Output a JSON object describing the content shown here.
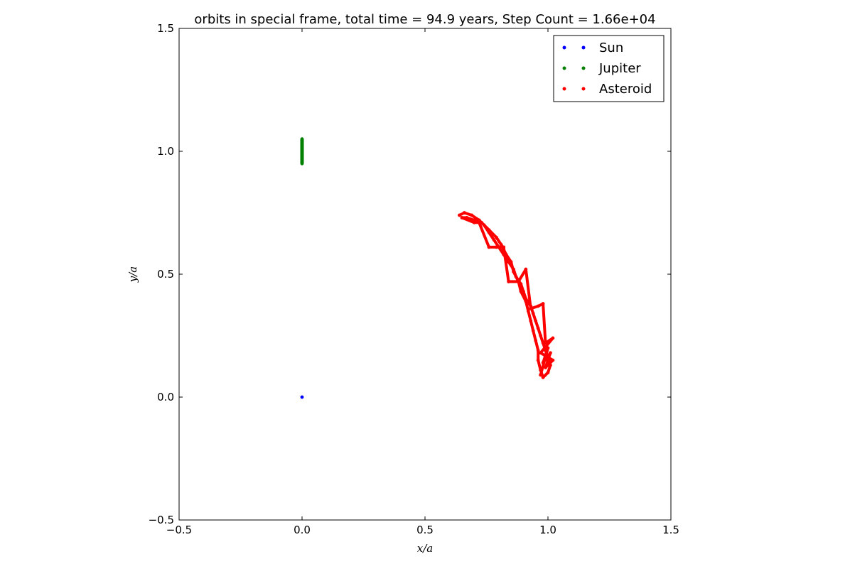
{
  "chart_data": {
    "type": "scatter",
    "title": "orbits in special frame, total time = 94.9 years, Step Count = 1.66e+04",
    "xlabel": "x/a",
    "ylabel": "y/a",
    "xlim": [
      -0.5,
      1.5
    ],
    "ylim": [
      -0.5,
      1.5
    ],
    "xticks": [
      -0.5,
      0.0,
      0.5,
      1.0,
      1.5
    ],
    "yticks": [
      -0.5,
      0.0,
      0.5,
      1.0,
      1.5
    ],
    "xtick_labels": [
      "−0.5",
      "0.0",
      "0.5",
      "1.0",
      "1.5"
    ],
    "ytick_labels": [
      "−0.5",
      "0.0",
      "0.5",
      "1.0",
      "1.5"
    ],
    "grid": false,
    "legend_position": "top-right",
    "series": [
      {
        "name": "Sun",
        "color": "#0000ff",
        "points": [
          [
            0.0,
            0.0
          ]
        ]
      },
      {
        "name": "Jupiter",
        "color": "#008000",
        "points": [
          [
            0.0,
            0.95
          ],
          [
            0.0,
            0.97
          ],
          [
            0.0,
            0.99
          ],
          [
            0.0,
            1.01
          ],
          [
            0.0,
            1.03
          ],
          [
            0.0,
            1.05
          ]
        ]
      },
      {
        "name": "Asteroid",
        "color": "#ff0000",
        "points": [
          [
            0.64,
            0.74
          ],
          [
            0.66,
            0.75
          ],
          [
            0.69,
            0.74
          ],
          [
            0.72,
            0.72
          ],
          [
            0.74,
            0.7
          ],
          [
            0.76,
            0.67
          ],
          [
            0.78,
            0.64
          ],
          [
            0.8,
            0.61
          ],
          [
            0.82,
            0.58
          ],
          [
            0.84,
            0.55
          ],
          [
            0.86,
            0.52
          ],
          [
            0.87,
            0.49
          ],
          [
            0.89,
            0.46
          ],
          [
            0.9,
            0.43
          ],
          [
            0.91,
            0.4
          ],
          [
            0.93,
            0.37
          ],
          [
            0.94,
            0.34
          ],
          [
            0.95,
            0.31
          ],
          [
            0.96,
            0.28
          ],
          [
            0.97,
            0.25
          ],
          [
            0.98,
            0.22
          ],
          [
            0.99,
            0.19
          ],
          [
            1.0,
            0.16
          ],
          [
            1.01,
            0.13
          ],
          [
            1.0,
            0.1
          ],
          [
            0.98,
            0.08
          ],
          [
            0.97,
            0.11
          ],
          [
            0.96,
            0.15
          ],
          [
            0.96,
            0.19
          ],
          [
            0.95,
            0.23
          ],
          [
            0.94,
            0.27
          ],
          [
            0.93,
            0.31
          ],
          [
            0.92,
            0.35
          ],
          [
            0.91,
            0.39
          ],
          [
            0.89,
            0.43
          ],
          [
            0.88,
            0.47
          ],
          [
            0.86,
            0.51
          ],
          [
            0.85,
            0.55
          ],
          [
            0.83,
            0.58
          ],
          [
            0.81,
            0.62
          ],
          [
            0.79,
            0.65
          ],
          [
            0.76,
            0.68
          ],
          [
            0.73,
            0.71
          ],
          [
            0.7,
            0.72
          ],
          [
            0.67,
            0.73
          ],
          [
            0.65,
            0.73
          ],
          [
            0.7,
            0.71
          ],
          [
            0.72,
            0.71
          ],
          [
            0.76,
            0.61
          ],
          [
            0.79,
            0.61
          ],
          [
            0.82,
            0.61
          ],
          [
            0.84,
            0.47
          ],
          [
            0.88,
            0.47
          ],
          [
            0.91,
            0.52
          ],
          [
            0.93,
            0.36
          ],
          [
            0.96,
            0.37
          ],
          [
            0.98,
            0.38
          ],
          [
            0.99,
            0.22
          ],
          [
            1.02,
            0.24
          ],
          [
            0.97,
            0.18
          ],
          [
            1.02,
            0.15
          ],
          [
            0.99,
            0.12
          ],
          [
            1.01,
            0.18
          ],
          [
            0.98,
            0.14
          ],
          [
            1.0,
            0.2
          ],
          [
            0.97,
            0.09
          ]
        ]
      }
    ]
  }
}
